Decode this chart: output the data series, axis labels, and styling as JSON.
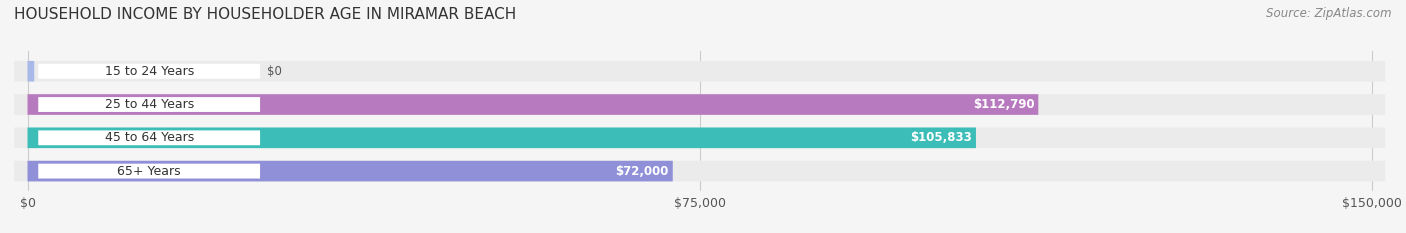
{
  "title": "HOUSEHOLD INCOME BY HOUSEHOLDER AGE IN MIRAMAR BEACH",
  "source": "Source: ZipAtlas.com",
  "categories": [
    "15 to 24 Years",
    "25 to 44 Years",
    "45 to 64 Years",
    "65+ Years"
  ],
  "values": [
    0,
    112790,
    105833,
    72000
  ],
  "bar_colors": [
    "#a8b8e8",
    "#b87abf",
    "#3dbdb8",
    "#9090d8"
  ],
  "label_colors": [
    "#555555",
    "#ffffff",
    "#ffffff",
    "#555555"
  ],
  "max_val": 150000,
  "xtick_vals": [
    0,
    75000,
    150000
  ],
  "xtick_labels": [
    "$0",
    "$75,000",
    "$150,000"
  ],
  "bg_color": "#f5f5f5",
  "bar_bg_color": "#ebebeb",
  "bar_height": 0.62,
  "title_fontsize": 11,
  "source_fontsize": 8.5,
  "label_fontsize": 9,
  "ylabel_fontsize": 9,
  "value_fontsize": 8.5
}
